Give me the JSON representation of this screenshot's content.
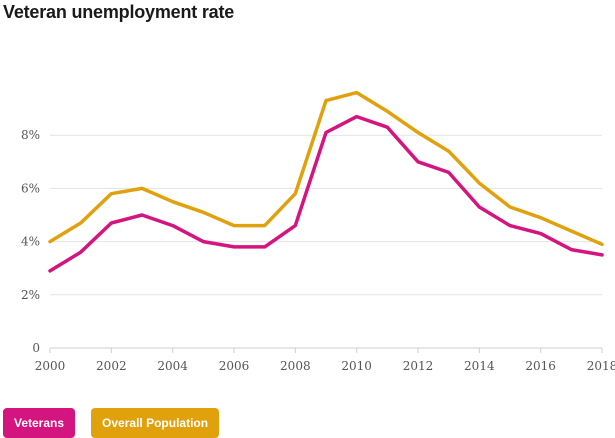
{
  "colors": {
    "veterans": "#d4147f",
    "overall": "#e0a10c",
    "grid": "#e3e3e3",
    "axis": "#cfcfcf"
  },
  "chart_data": {
    "type": "line",
    "title": "Veteran unemployment rate",
    "xlabel": "",
    "ylabel": "",
    "x": [
      2000,
      2001,
      2002,
      2003,
      2004,
      2005,
      2006,
      2007,
      2008,
      2009,
      2010,
      2011,
      2012,
      2013,
      2014,
      2015,
      2016,
      2017,
      2018
    ],
    "xticks": [
      2000,
      2002,
      2004,
      2006,
      2008,
      2010,
      2012,
      2014,
      2016,
      2018
    ],
    "xtick_labels": [
      "2000",
      "2002",
      "2004",
      "2006",
      "2008",
      "2010",
      "2012",
      "2014",
      "2016",
      "2018"
    ],
    "yticks": [
      0,
      2,
      4,
      6,
      8
    ],
    "ytick_labels": [
      "0",
      "2%",
      "4%",
      "6%",
      "8%"
    ],
    "xlim": [
      2000,
      2018
    ],
    "ylim": [
      0,
      10
    ],
    "grid": true,
    "legend_position": "bottom-left",
    "series": [
      {
        "name": "Veterans",
        "color": "#d4147f",
        "values": [
          2.9,
          3.6,
          4.7,
          5.0,
          4.6,
          4.0,
          3.8,
          3.8,
          4.6,
          8.1,
          8.7,
          8.3,
          7.0,
          6.6,
          5.3,
          4.6,
          4.3,
          3.7,
          3.5
        ]
      },
      {
        "name": "Overall Population",
        "color": "#e0a10c",
        "values": [
          4.0,
          4.7,
          5.8,
          6.0,
          5.5,
          5.1,
          4.6,
          4.6,
          5.8,
          9.3,
          9.6,
          8.9,
          8.1,
          7.4,
          6.2,
          5.3,
          4.9,
          4.4,
          3.9
        ]
      }
    ]
  }
}
